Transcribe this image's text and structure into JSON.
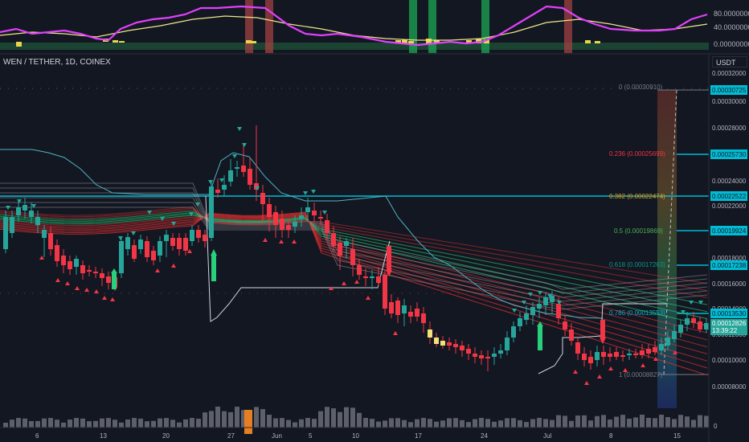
{
  "symbol": "WEN / TETHER, 1D, COINEX",
  "unit": "USDT",
  "oscillator_axis": [
    "80.00000000",
    "40.00000000",
    "0.00000000"
  ],
  "price_axis": [
    "0.00032000",
    "0.00030000",
    "0.00028000",
    "0.00026000",
    "0.00024000",
    "0.00022000",
    "0.00020000",
    "0.00018000",
    "0.00016000",
    "0.00014000",
    "0.00012000",
    "0.00010000",
    "0.00008000"
  ],
  "date_axis": [
    "6",
    "13",
    "20",
    "27",
    "Jun",
    "5",
    "10",
    "17",
    "24",
    "Jul",
    "8",
    "15"
  ],
  "volume_axis_label": "0",
  "fib_levels": [
    {
      "label": "0 (0.00030910)",
      "tag": "0.00030725",
      "color": "#787b86"
    },
    {
      "label": "0.236 (0.00025699)",
      "tag": "0.00025730",
      "color": "#f23645"
    },
    {
      "label": "0.382 (0.00022474)",
      "tag": "0.00022522",
      "color": "#ff9800"
    },
    {
      "label": "0.5 (0.00019869)",
      "tag": "0.00019924",
      "color": "#4caf50"
    },
    {
      "label": "0.618 (0.00017263)",
      "tag": "0.00017238",
      "color": "#089981"
    },
    {
      "label": "0.786 (0.00013553)",
      "tag": "0.00013530",
      "color": "#00bcd4"
    },
    {
      "label": "1 (0.00008827)",
      "tag": "",
      "color": "#787b86"
    }
  ],
  "current_price": "0.00012826",
  "countdown": "13:39:22",
  "colors": {
    "up": "#26a69a",
    "down": "#f23645",
    "cyan": "#00bcd4",
    "magenta": "#e040fb"
  }
}
